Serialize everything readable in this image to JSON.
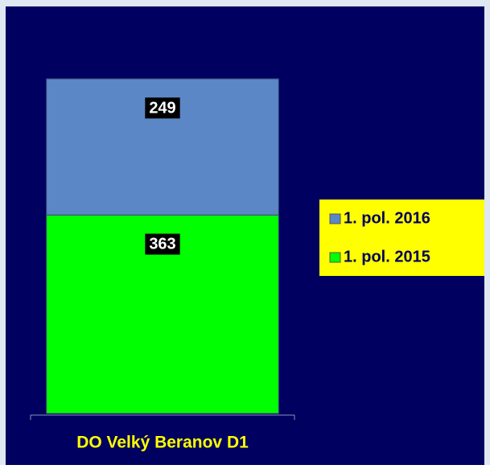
{
  "chart_data": {
    "type": "stacked-bar",
    "categories": [
      "DO Velký Beranov D1"
    ],
    "series": [
      {
        "name": "1. pol. 2015",
        "color": "#00ff00",
        "values": [
          363
        ]
      },
      {
        "name": "1. pol. 2016",
        "color": "#5b87c6",
        "values": [
          249
        ]
      }
    ],
    "legend": "right"
  }
}
